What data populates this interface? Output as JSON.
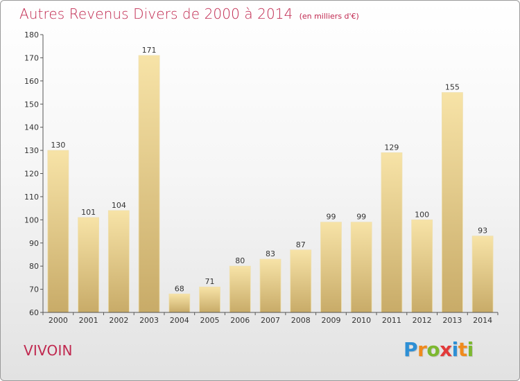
{
  "title": "Autres Revenus Divers de 2000 à 2014",
  "title_unit": "(en milliers d'€)",
  "place_name": "VIVOIN",
  "logo_text": "Proxiti",
  "colors": {
    "title": "#c0284f",
    "bar_light": "#f6e2a6",
    "bar_dark": "#c9ad6a",
    "axis": "#555555"
  },
  "chart_data": {
    "type": "bar",
    "title": "Autres Revenus Divers de 2000 à 2014",
    "xlabel": "",
    "ylabel": "",
    "categories": [
      "2000",
      "2001",
      "2002",
      "2003",
      "2004",
      "2005",
      "2006",
      "2007",
      "2008",
      "2009",
      "2010",
      "2011",
      "2012",
      "2013",
      "2014"
    ],
    "values": [
      130,
      101,
      104,
      171,
      68,
      71,
      80,
      83,
      87,
      99,
      99,
      129,
      100,
      155,
      93
    ],
    "ylim": [
      60,
      180
    ],
    "yticks": [
      60,
      70,
      80,
      90,
      100,
      110,
      120,
      130,
      140,
      150,
      160,
      170,
      180
    ],
    "grid": false,
    "data_labels": true
  }
}
